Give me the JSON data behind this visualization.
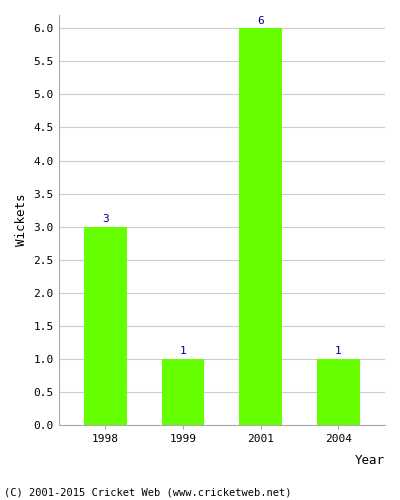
{
  "years": [
    "1998",
    "1999",
    "2001",
    "2004"
  ],
  "values": [
    3,
    1,
    6,
    1
  ],
  "bar_color": "#66ff00",
  "bar_edge_color": "#66ff00",
  "xlabel": "Year",
  "ylabel": "Wickets",
  "ylim": [
    0,
    6.2
  ],
  "yticks": [
    0.0,
    0.5,
    1.0,
    1.5,
    2.0,
    2.5,
    3.0,
    3.5,
    4.0,
    4.5,
    5.0,
    5.5,
    6.0
  ],
  "annotation_color": "#000080",
  "annotation_fontsize": 8,
  "footer_text": "(C) 2001-2015 Cricket Web (www.cricketweb.net)",
  "footer_fontsize": 7.5,
  "axis_label_fontsize": 9,
  "tick_fontsize": 8,
  "grid_color": "#cccccc",
  "background_color": "#ffffff"
}
